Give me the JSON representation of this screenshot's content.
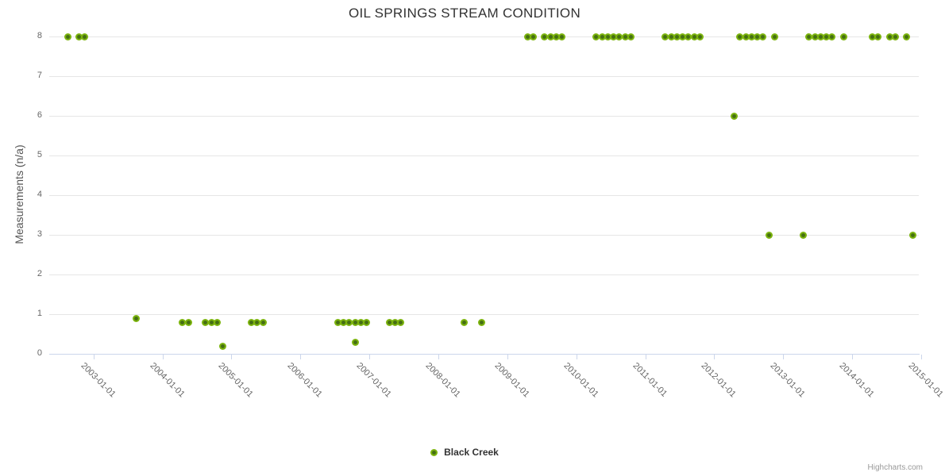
{
  "title": "OIL SPRINGS STREAM CONDITION",
  "credits": "Highcharts.com",
  "legend": {
    "items": [
      {
        "label": "Black Creek",
        "marker_color": "#7cb40e"
      }
    ]
  },
  "colors": {
    "point_outer": "#7cb40e",
    "point_inner": "#456f14",
    "gridline": "#e6e6e6",
    "axis_line": "#ccd6eb",
    "title_text": "#333333",
    "axis_label_text": "#666666"
  },
  "chart_data": {
    "type": "scatter",
    "title": "OIL SPRINGS STREAM CONDITION",
    "xlabel": "",
    "ylabel": "Measurements (n/a)",
    "ylim": [
      0,
      8
    ],
    "y_ticks": [
      0,
      1,
      2,
      3,
      4,
      5,
      6,
      7,
      8
    ],
    "x_tick_labels": [
      "2003-01-01",
      "2004-01-01",
      "2005-01-01",
      "2006-01-01",
      "2007-01-01",
      "2008-01-01",
      "2009-01-01",
      "2010-01-01",
      "2011-01-01",
      "2012-01-01",
      "2013-01-01",
      "2014-01-01",
      "2015-01-01"
    ],
    "x_range_decimal_years": [
      2002.36,
      2015.03
    ],
    "grid": "horizontal-only",
    "legend_position": "bottom-center",
    "series": [
      {
        "name": "Black Creek",
        "color": "#7cb40e",
        "points": [
          [
            "2002-08",
            8
          ],
          [
            "2002-10",
            8
          ],
          [
            "2002-11",
            8
          ],
          [
            "2003-08",
            0.9
          ],
          [
            "2004-04",
            0.8
          ],
          [
            "2004-05",
            0.8
          ],
          [
            "2004-08",
            0.8
          ],
          [
            "2004-09",
            0.8
          ],
          [
            "2004-10",
            0.8
          ],
          [
            "2004-11",
            0.2
          ],
          [
            "2005-04",
            0.8
          ],
          [
            "2005-05",
            0.8
          ],
          [
            "2005-06",
            0.8
          ],
          [
            "2006-07",
            0.8
          ],
          [
            "2006-08",
            0.8
          ],
          [
            "2006-09",
            0.8
          ],
          [
            "2006-10",
            0.3
          ],
          [
            "2006-10",
            0.8
          ],
          [
            "2006-11",
            0.8
          ],
          [
            "2006-12",
            0.8
          ],
          [
            "2007-04",
            0.8
          ],
          [
            "2007-05",
            0.8
          ],
          [
            "2007-06",
            0.8
          ],
          [
            "2008-05",
            0.8
          ],
          [
            "2008-08",
            0.8
          ],
          [
            "2009-04",
            8
          ],
          [
            "2009-05",
            8
          ],
          [
            "2009-07",
            8
          ],
          [
            "2009-08",
            8
          ],
          [
            "2009-09",
            8
          ],
          [
            "2009-10",
            8
          ],
          [
            "2010-04",
            8
          ],
          [
            "2010-05",
            8
          ],
          [
            "2010-06",
            8
          ],
          [
            "2010-07",
            8
          ],
          [
            "2010-08",
            8
          ],
          [
            "2010-09",
            8
          ],
          [
            "2010-10",
            8
          ],
          [
            "2011-04",
            8
          ],
          [
            "2011-05",
            8
          ],
          [
            "2011-06",
            8
          ],
          [
            "2011-07",
            8
          ],
          [
            "2011-08",
            8
          ],
          [
            "2011-09",
            8
          ],
          [
            "2011-10",
            8
          ],
          [
            "2012-04",
            6
          ],
          [
            "2012-05",
            8
          ],
          [
            "2012-06",
            8
          ],
          [
            "2012-07",
            8
          ],
          [
            "2012-08",
            8
          ],
          [
            "2012-09",
            8
          ],
          [
            "2012-10",
            3
          ],
          [
            "2012-11",
            8
          ],
          [
            "2013-04",
            3
          ],
          [
            "2013-05",
            8
          ],
          [
            "2013-06",
            8
          ],
          [
            "2013-07",
            8
          ],
          [
            "2013-08",
            8
          ],
          [
            "2013-09",
            8
          ],
          [
            "2013-11",
            8
          ],
          [
            "2014-04",
            8
          ],
          [
            "2014-05",
            8
          ],
          [
            "2014-07",
            8
          ],
          [
            "2014-08",
            8
          ],
          [
            "2014-10",
            8
          ],
          [
            "2014-11",
            3
          ]
        ]
      }
    ]
  }
}
